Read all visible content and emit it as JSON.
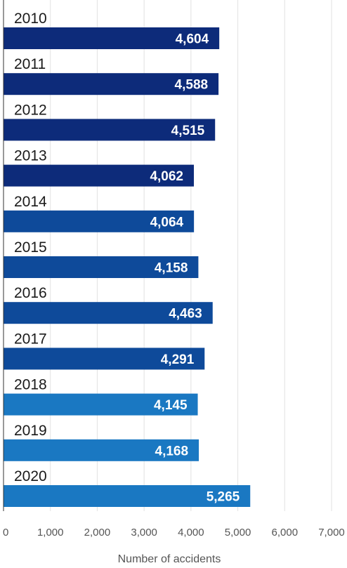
{
  "chart_data": {
    "type": "bar",
    "orientation": "horizontal",
    "categories": [
      "2010",
      "2011",
      "2012",
      "2013",
      "2014",
      "2015",
      "2016",
      "2017",
      "2018",
      "2019",
      "2020"
    ],
    "values": [
      4604,
      4588,
      4515,
      4062,
      4064,
      4158,
      4463,
      4291,
      4145,
      4168,
      5265
    ],
    "value_labels": [
      "4,604",
      "4,588",
      "4,515",
      "4,062",
      "4,064",
      "4,158",
      "4,463",
      "4,291",
      "4,145",
      "4,168",
      "5,265"
    ],
    "bar_colors": [
      "#0d2b7a",
      "#0d2b7a",
      "#0d2b7a",
      "#0d2b7a",
      "#0e4a9a",
      "#0e4a9a",
      "#0e4a9a",
      "#0e4a9a",
      "#1a78c2",
      "#1a78c2",
      "#1a78c2"
    ],
    "xlabel": "Number of accidents",
    "ylabel": "",
    "xlim": [
      0,
      7000
    ],
    "xticks": [
      0,
      1000,
      2000,
      3000,
      4000,
      5000,
      6000,
      7000
    ],
    "xtick_labels": [
      "0",
      "1,000",
      "2,000",
      "3,000",
      "4,000",
      "5,000",
      "6,000",
      "7,000"
    ],
    "grid": true
  }
}
